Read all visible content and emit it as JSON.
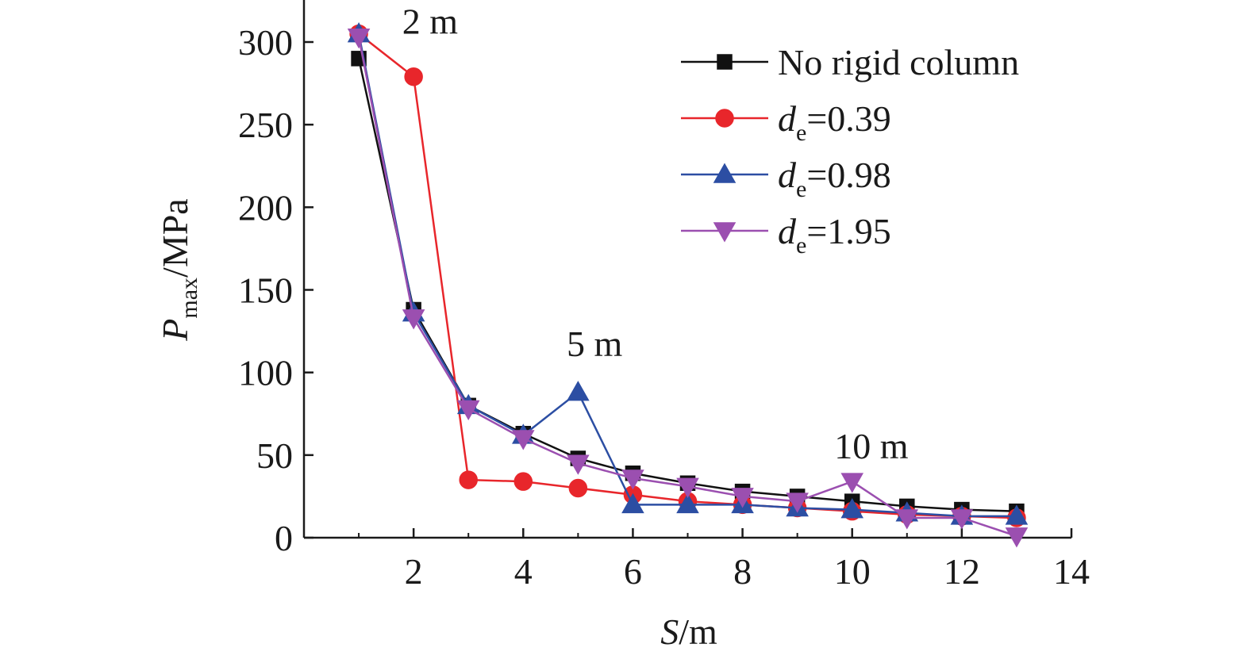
{
  "chart_data": {
    "type": "line",
    "x": [
      1,
      2,
      3,
      4,
      5,
      6,
      7,
      8,
      9,
      10,
      11,
      12,
      13
    ],
    "xlabel_var": "S",
    "xlabel_unit": "/m",
    "ylabel_var": "P",
    "ylabel_sub": "max",
    "ylabel_unit": "/MPa",
    "xlim": [
      0,
      14
    ],
    "ylim": [
      0,
      300
    ],
    "xticks": [
      2,
      4,
      6,
      8,
      10,
      12,
      14
    ],
    "yticks": [
      0,
      50,
      100,
      150,
      200,
      250,
      300
    ],
    "xtick_labels": [
      "2",
      "4",
      "6",
      "8",
      "10",
      "12",
      "14"
    ],
    "ytick_labels": [
      "0",
      "50",
      "100",
      "150",
      "200",
      "250",
      "300"
    ],
    "grid": false,
    "legend_position": "top-right",
    "series": [
      {
        "name": "No rigid column",
        "label_var": "",
        "label_sub": "",
        "label_rest": "No rigid column",
        "color": "#111111",
        "marker": "square",
        "values": [
          290,
          138,
          80,
          63,
          48,
          39,
          33,
          28,
          25,
          22,
          19,
          17,
          16
        ]
      },
      {
        "name": "de=0.39",
        "label_var": "d",
        "label_sub": "e",
        "label_rest": "=0.39",
        "color": "#e8262b",
        "marker": "circle",
        "values": [
          305,
          279,
          35,
          34,
          30,
          26,
          22,
          20,
          18,
          16,
          14,
          13,
          12
        ]
      },
      {
        "name": "de=0.98",
        "label_var": "d",
        "label_sub": "e",
        "label_rest": "=0.98",
        "color": "#2c4ea3",
        "marker": "triangle-up",
        "values": [
          305,
          136,
          80,
          62,
          88,
          20,
          20,
          20,
          18,
          17,
          15,
          13,
          13
        ]
      },
      {
        "name": "de=1.95",
        "label_var": "d",
        "label_sub": "e",
        "label_rest": "=1.95",
        "color": "#9b4fb0",
        "marker": "triangle-down",
        "values": [
          303,
          133,
          78,
          60,
          45,
          36,
          31,
          25,
          22,
          34,
          12,
          12,
          1
        ]
      }
    ],
    "annotations": [
      {
        "text": "2 m",
        "x": 2.3,
        "y": 305
      },
      {
        "text": "5 m",
        "x": 5.3,
        "y": 110
      },
      {
        "text": "10 m",
        "x": 10.35,
        "y": 48
      }
    ]
  }
}
